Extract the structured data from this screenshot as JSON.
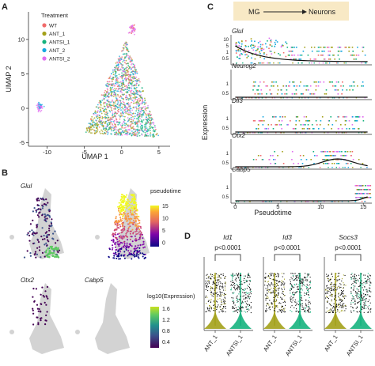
{
  "panel_labels": {
    "a": "A",
    "b": "B",
    "c": "C",
    "d": "D"
  },
  "colors": {
    "WT": "#f06a6a",
    "ANT_1": "#a3a11a",
    "ANTSI_1": "#16b27e",
    "ANT_2": "#18a8e0",
    "ANTSI_2": "#e16ef0",
    "mg_box": "#f8e9c5",
    "grey": "#d3d3d3",
    "text": "#222222"
  },
  "chart_data": [
    {
      "panel": "A",
      "type": "scatter",
      "xlabel": "UMAP 1",
      "ylabel": "UMAP 2",
      "x_ticks": [
        "-10",
        "-5",
        "0",
        "5"
      ],
      "y_ticks": [
        "10",
        "5",
        "0",
        "-5"
      ],
      "xlim": [
        -12.5,
        6.5
      ],
      "ylim": [
        -5.5,
        14
      ],
      "legend": {
        "title": "Treatment",
        "position": "top-left",
        "entries": [
          "WT",
          "ANT_1",
          "ANTSI_1",
          "ANT_2",
          "ANTSI_2"
        ]
      },
      "clusters": [
        {
          "name": "main",
          "x": 0.5,
          "y": 1.5,
          "note": "triangular cloud, all treatments"
        },
        {
          "name": "left",
          "x": -11,
          "y": 0,
          "note": "small purple cluster"
        },
        {
          "name": "top",
          "x": 1.5,
          "y": 11,
          "note": "small pink cluster"
        }
      ]
    },
    {
      "panel": "B",
      "type": "scatter",
      "genes": [
        "Glul",
        "Otx2",
        "Cabp5"
      ],
      "pseudotime_label": "pseudotime",
      "pseudotime_ticks": [
        "15",
        "10",
        "5",
        "0"
      ],
      "expression_label": "log10(Expression)",
      "expression_ticks": [
        "1.6",
        "1.2",
        "0.8",
        "0.4"
      ]
    },
    {
      "panel": "C",
      "type": "scatter",
      "arrow_from": "MG",
      "arrow_to": "Neurons",
      "xlabel": "Pseudotime",
      "ylabel": "Expression",
      "x_ticks": [
        "0",
        "5",
        "10",
        "15"
      ],
      "xlim": [
        -0.5,
        16
      ],
      "genes": [
        {
          "name": "Glul",
          "y_ticks": [
            "10",
            "5",
            "1",
            "0.5"
          ]
        },
        {
          "name": "Neurog2",
          "y_ticks": [
            "1",
            "0.5"
          ]
        },
        {
          "name": "Dll3",
          "y_ticks": [
            "1",
            "0.5"
          ]
        },
        {
          "name": "Otx2",
          "y_ticks": [
            "1",
            "0.5"
          ]
        },
        {
          "name": "Cabp5",
          "y_ticks": [
            "1",
            "0.5"
          ]
        }
      ]
    },
    {
      "panel": "D",
      "type": "violin",
      "categories": [
        "ANT_1",
        "ANTSI_1"
      ],
      "genes": [
        {
          "name": "Id1",
          "p_label": "p<0.0001"
        },
        {
          "name": "Id3",
          "p_label": "p<0.0001"
        },
        {
          "name": "Socs3",
          "p_label": "p<0.0001"
        }
      ]
    }
  ]
}
